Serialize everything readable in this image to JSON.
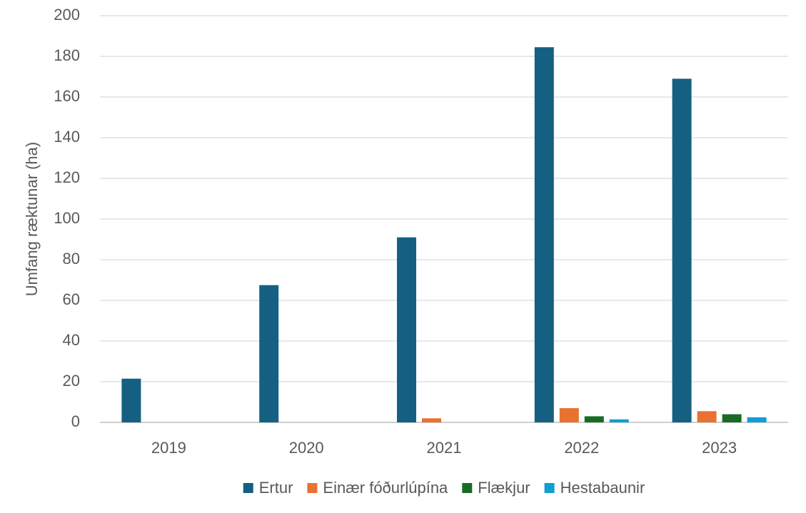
{
  "chart_data": {
    "type": "bar",
    "categories": [
      "2019",
      "2020",
      "2021",
      "2022",
      "2023"
    ],
    "series": [
      {
        "name": "Ertur",
        "color": "#156082",
        "values": [
          21.5,
          67.5,
          91,
          184.5,
          169
        ]
      },
      {
        "name": "Einær fóðurlúpína",
        "color": "#e97132",
        "values": [
          0,
          0,
          2,
          7,
          5.5
        ]
      },
      {
        "name": "Flækjur",
        "color": "#196b24",
        "values": [
          0,
          0,
          0,
          3,
          4
        ]
      },
      {
        "name": "Hestabaunir",
        "color": "#0f9ed5",
        "values": [
          0,
          0,
          0,
          1.5,
          2.5
        ]
      }
    ],
    "y_label": "Umfang ræktunar (ha)",
    "ylim": [
      0,
      200
    ],
    "yticks": [
      0,
      20,
      40,
      60,
      80,
      100,
      120,
      140,
      160,
      180,
      200
    ],
    "grid": true,
    "legend": "bottom"
  }
}
